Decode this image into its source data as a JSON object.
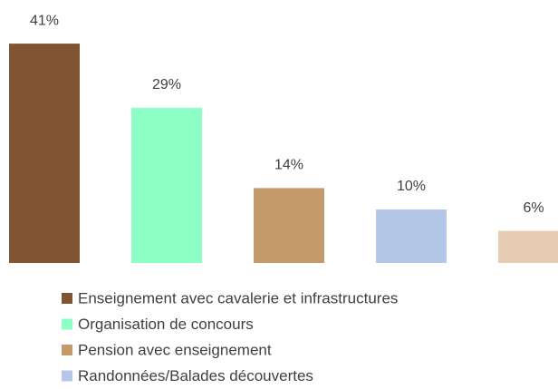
{
  "chart_data": {
    "type": "bar",
    "categories": [
      "Enseignement avec cavalerie et infrastructures",
      "Organisation de concours",
      "Pension avec enseignement",
      "Randonnées/Balades découvertes",
      null
    ],
    "values": [
      41,
      29,
      14,
      10,
      6
    ],
    "value_labels": [
      "41%",
      "29%",
      "14%",
      "10%",
      "6%"
    ],
    "colors": [
      "#7f5533",
      "#8dffc4",
      "#c59a6a",
      "#b4c7e7",
      "#e8cdb5"
    ]
  }
}
